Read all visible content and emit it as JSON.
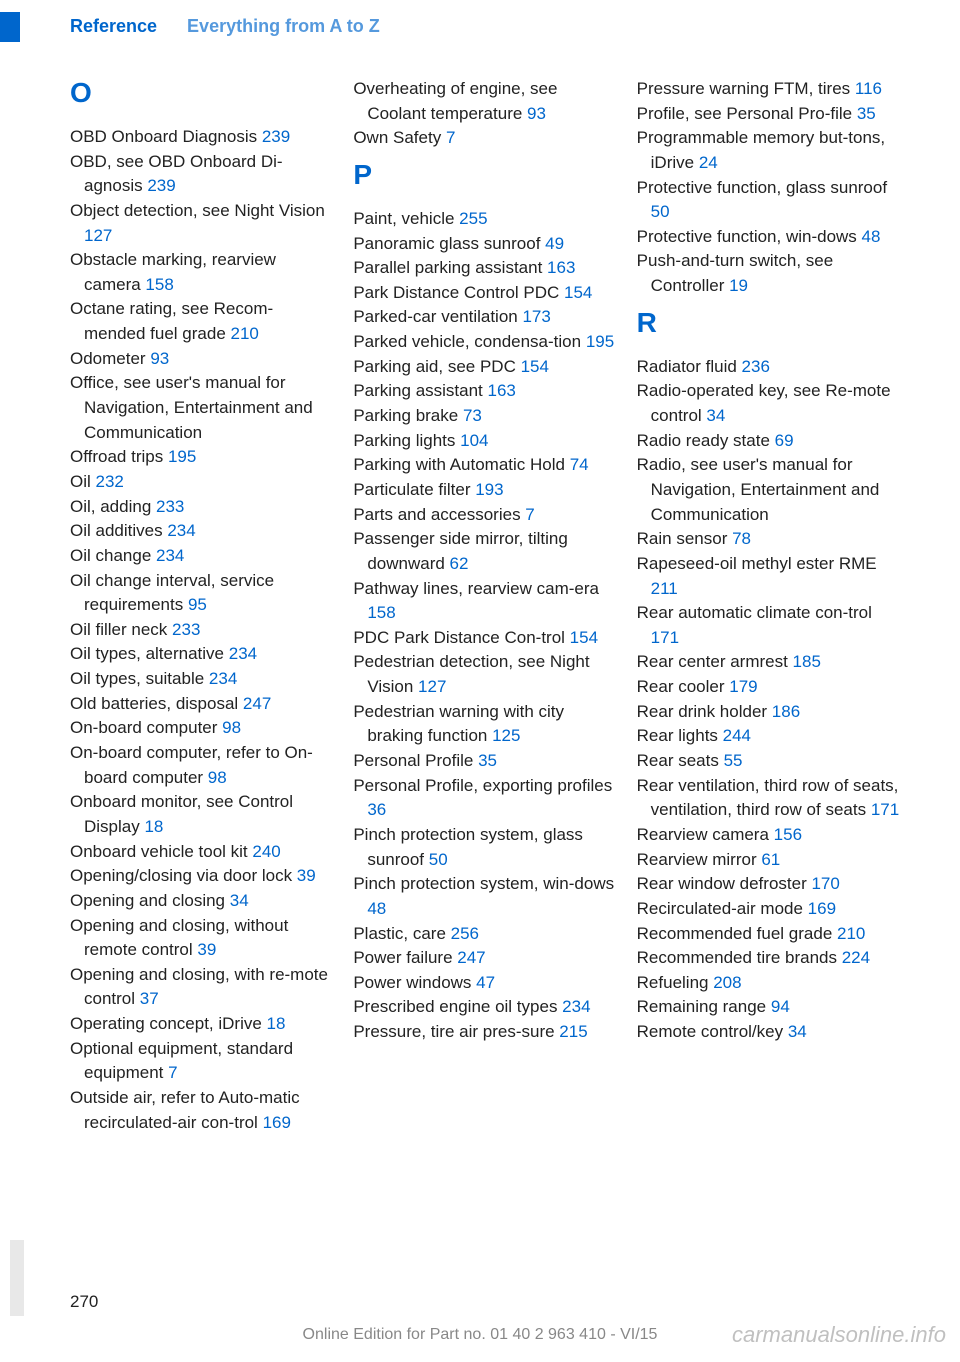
{
  "header": {
    "reference": "Reference",
    "section": "Everything from A to Z"
  },
  "columns": [
    {
      "groups": [
        {
          "letter": "O",
          "first": true,
          "entries": [
            {
              "text": "OBD Onboard Diagnosis ",
              "ref": "239"
            },
            {
              "text": "OBD, see OBD Onboard Di‐agnosis ",
              "ref": "239"
            },
            {
              "text": "Object detection, see Night Vision ",
              "ref": "127"
            },
            {
              "text": "Obstacle marking, rearview camera ",
              "ref": "158"
            },
            {
              "text": "Octane rating, see Recom‐mended fuel grade ",
              "ref": "210"
            },
            {
              "text": "Odometer ",
              "ref": "93"
            },
            {
              "text": "Office, see user's manual for Navigation, Entertainment and Communication",
              "ref": ""
            },
            {
              "text": "Offroad trips ",
              "ref": "195"
            },
            {
              "text": "Oil ",
              "ref": "232"
            },
            {
              "text": "Oil, adding ",
              "ref": "233"
            },
            {
              "text": "Oil additives ",
              "ref": "234"
            },
            {
              "text": "Oil change ",
              "ref": "234"
            },
            {
              "text": "Oil change interval, service requirements ",
              "ref": "95"
            },
            {
              "text": "Oil filler neck ",
              "ref": "233"
            },
            {
              "text": "Oil types, alternative ",
              "ref": "234"
            },
            {
              "text": "Oil types, suitable ",
              "ref": "234"
            },
            {
              "text": "Old batteries, disposal ",
              "ref": "247"
            },
            {
              "text": "On-board computer ",
              "ref": "98"
            },
            {
              "text": "On-board computer, refer to On-board computer ",
              "ref": "98"
            },
            {
              "text": "Onboard monitor, see Control Display ",
              "ref": "18"
            },
            {
              "text": "Onboard vehicle tool kit ",
              "ref": "240"
            },
            {
              "text": "Opening/closing via door lock ",
              "ref": "39"
            },
            {
              "text": "Opening and closing ",
              "ref": "34"
            },
            {
              "text": "Opening and closing, without remote control ",
              "ref": "39"
            },
            {
              "text": "Opening and closing, with re‐mote control ",
              "ref": "37"
            },
            {
              "text": "Operating concept, iDrive ",
              "ref": "18"
            },
            {
              "text": "Optional equipment, standard equipment ",
              "ref": "7"
            },
            {
              "text": "Outside air, refer to Auto‐matic recirculated-air con‐trol ",
              "ref": "169"
            }
          ]
        }
      ]
    },
    {
      "groups": [
        {
          "letter": "",
          "first": true,
          "entries": [
            {
              "text": "Overheating of engine, see Coolant temperature ",
              "ref": "93"
            },
            {
              "text": "Own Safety ",
              "ref": "7"
            }
          ]
        },
        {
          "letter": "P",
          "first": false,
          "entries": [
            {
              "text": "Paint, vehicle ",
              "ref": "255"
            },
            {
              "text": "Panoramic glass sunroof ",
              "ref": "49"
            },
            {
              "text": "Parallel parking assistant ",
              "ref": "163"
            },
            {
              "text": "Park Distance Control PDC ",
              "ref": "154"
            },
            {
              "text": "Parked-car ventilation ",
              "ref": "173"
            },
            {
              "text": "Parked vehicle, condensa‐tion ",
              "ref": "195"
            },
            {
              "text": "Parking aid, see PDC ",
              "ref": "154"
            },
            {
              "text": "Parking assistant ",
              "ref": "163"
            },
            {
              "text": "Parking brake ",
              "ref": "73"
            },
            {
              "text": "Parking lights ",
              "ref": "104"
            },
            {
              "text": "Parking with Automatic Hold ",
              "ref": "74"
            },
            {
              "text": "Particulate filter ",
              "ref": "193"
            },
            {
              "text": "Parts and accessories ",
              "ref": "7"
            },
            {
              "text": "Passenger side mirror, tilting downward ",
              "ref": "62"
            },
            {
              "text": "Pathway lines, rearview cam‐era ",
              "ref": "158"
            },
            {
              "text": "PDC Park Distance Con‐trol ",
              "ref": "154"
            },
            {
              "text": "Pedestrian detection, see Night Vision ",
              "ref": "127"
            },
            {
              "text": "Pedestrian warning with city braking function ",
              "ref": "125"
            },
            {
              "text": "Personal Profile ",
              "ref": "35"
            },
            {
              "text": "Personal Profile, exporting profiles ",
              "ref": "36"
            },
            {
              "text": "Pinch protection system, glass sunroof ",
              "ref": "50"
            },
            {
              "text": "Pinch protection system, win‐dows ",
              "ref": "48"
            },
            {
              "text": "Plastic, care ",
              "ref": "256"
            },
            {
              "text": "Power failure ",
              "ref": "247"
            },
            {
              "text": "Power windows ",
              "ref": "47"
            },
            {
              "text": "Prescribed engine oil types ",
              "ref": "234"
            },
            {
              "text": "Pressure, tire air pres‐sure ",
              "ref": "215"
            }
          ]
        }
      ]
    },
    {
      "groups": [
        {
          "letter": "",
          "first": true,
          "entries": [
            {
              "text": "Pressure warning FTM, tires ",
              "ref": "116"
            },
            {
              "text": "Profile, see Personal Pro‐file ",
              "ref": "35"
            },
            {
              "text": "Programmable memory but‐tons, iDrive ",
              "ref": "24"
            },
            {
              "text": "Protective function, glass sunroof ",
              "ref": "50"
            },
            {
              "text": "Protective function, win‐dows ",
              "ref": "48"
            },
            {
              "text": "Push-and-turn switch, see Controller ",
              "ref": "19"
            }
          ]
        },
        {
          "letter": "R",
          "first": false,
          "entries": [
            {
              "text": "Radiator fluid ",
              "ref": "236"
            },
            {
              "text": "Radio-operated key, see Re‐mote control ",
              "ref": "34"
            },
            {
              "text": "Radio ready state ",
              "ref": "69"
            },
            {
              "text": "Radio, see user's manual for Navigation, Entertainment and Communication",
              "ref": ""
            },
            {
              "text": "Rain sensor ",
              "ref": "78"
            },
            {
              "text": "Rapeseed-oil methyl ester RME ",
              "ref": "211"
            },
            {
              "text": "Rear automatic climate con‐trol ",
              "ref": "171"
            },
            {
              "text": "Rear center armrest ",
              "ref": "185"
            },
            {
              "text": "Rear cooler ",
              "ref": "179"
            },
            {
              "text": "Rear drink holder ",
              "ref": "186"
            },
            {
              "text": "Rear lights ",
              "ref": "244"
            },
            {
              "text": "Rear seats ",
              "ref": "55"
            },
            {
              "text": "Rear ventilation, third row of seats, ventilation, third row of seats ",
              "ref": "171"
            },
            {
              "text": "Rearview camera ",
              "ref": "156"
            },
            {
              "text": "Rearview mirror ",
              "ref": "61"
            },
            {
              "text": "Rear window defroster ",
              "ref": "170"
            },
            {
              "text": "Recirculated-air mode ",
              "ref": "169"
            },
            {
              "text": "Recommended fuel grade ",
              "ref": "210"
            },
            {
              "text": "Recommended tire brands ",
              "ref": "224"
            },
            {
              "text": "Refueling ",
              "ref": "208"
            },
            {
              "text": "Remaining range ",
              "ref": "94"
            },
            {
              "text": "Remote control/key ",
              "ref": "34"
            }
          ]
        }
      ]
    }
  ],
  "page_number": "270",
  "footer": "Online Edition for Part no. 01 40 2 963 410 - VI/15",
  "watermark": "carmanualsonline.info"
}
